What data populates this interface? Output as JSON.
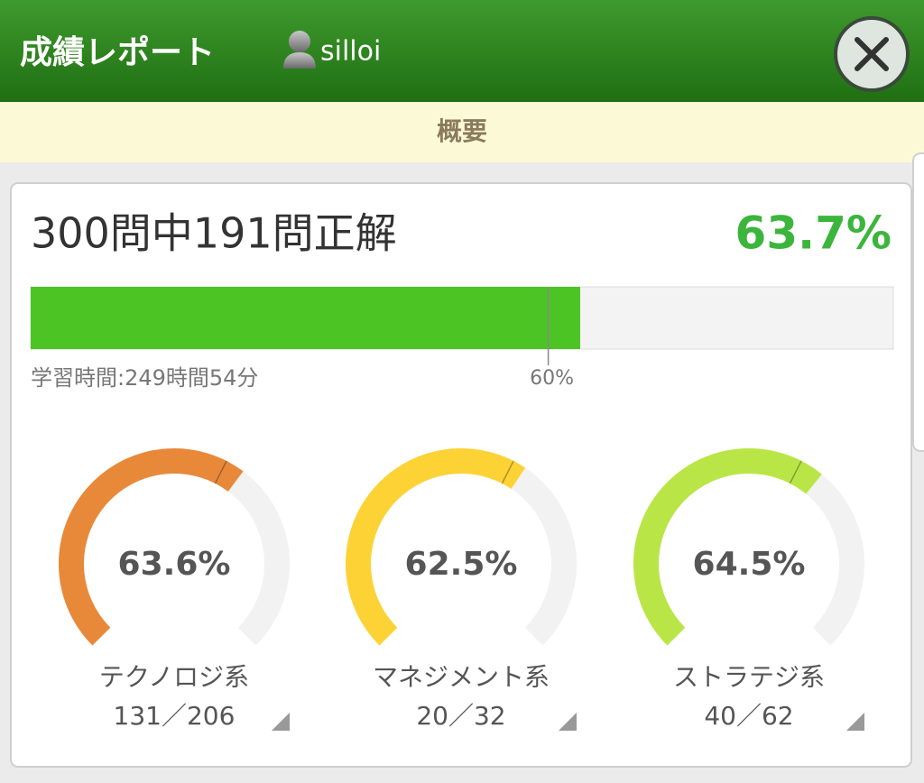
{
  "header": {
    "title": "成績レポート",
    "user": "silloi"
  },
  "tab": "概要",
  "summary": {
    "text": "300問中191問正解",
    "percent": 63.7,
    "percent_label": "63.7%",
    "marker": 60,
    "marker_label": "60%",
    "study_time": "学習時間:249時間54分"
  },
  "gauges": [
    {
      "name": "テクノロジ系",
      "value": 63.6,
      "value_label": "63.6%",
      "score": "131／206",
      "color": "#e8893a"
    },
    {
      "name": "マネジメント系",
      "value": 62.5,
      "value_label": "62.5%",
      "score": "20／32",
      "color": "#fdd235"
    },
    {
      "name": "ストラテジ系",
      "value": 64.5,
      "value_label": "64.5%",
      "score": "40／62",
      "color": "#b9e646"
    }
  ]
}
